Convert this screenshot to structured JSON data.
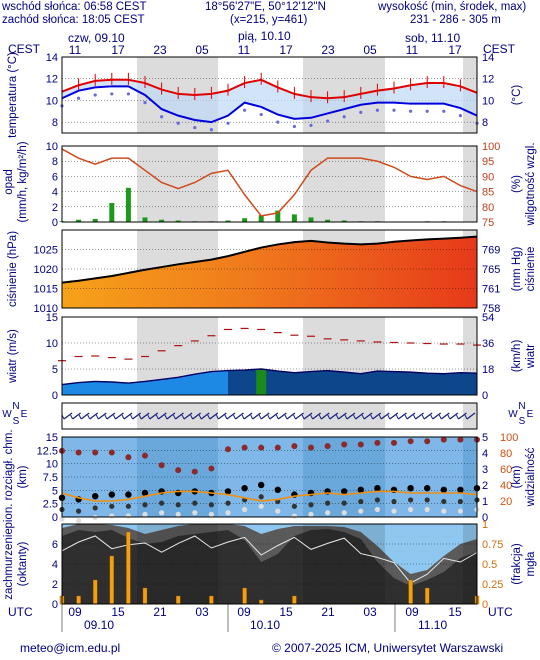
{
  "header": {
    "sunrise": "wschód słońca: 06:58 CEST",
    "sunset": "zachód słońca: 18:05 CEST",
    "coords": "18°56'27\"E, 50°12'12\"N",
    "grid": "(x=215, y=461)",
    "altitude_label": "wysokość (min, środek, max)",
    "altitude_value": "231 - 286 - 305 m"
  },
  "timezone_top": "CEST",
  "timezone_bottom": "UTC",
  "days_top": [
    "czw, 09.10",
    "pią, 10.10",
    "sob, 11.10"
  ],
  "hours_top": [
    "11",
    "17",
    "23",
    "05",
    "11",
    "17",
    "23",
    "05",
    "11",
    "17"
  ],
  "hours_bottom": [
    "09",
    "15",
    "21",
    "03",
    "09",
    "15",
    "21",
    "03",
    "09",
    "15"
  ],
  "days_bottom": [
    "09.10",
    "10.10",
    "11.10"
  ],
  "footer": {
    "email": "meteo@icm.edu.pl",
    "copyright": "© 2007-2025 ICM, Uniwersytet Warszawski"
  },
  "chart_data": [
    {
      "type": "line",
      "panel": "temperature",
      "ylabel": "temperatura (°C)",
      "ylabel_right": "(°C)",
      "ylim": [
        7,
        14
      ],
      "yticks": [
        8,
        10,
        12,
        14
      ],
      "series": [
        {
          "color": "#e00000",
          "values": [
            10.8,
            11.4,
            11.8,
            11.9,
            11.9,
            11.6,
            11.0,
            10.6,
            10.5,
            10.6,
            10.9,
            11.6,
            11.9,
            11.2,
            10.6,
            10.3,
            10.2,
            10.3,
            10.6,
            10.9,
            11.1,
            11.4,
            11.6,
            11.6,
            11.3,
            10.7
          ]
        },
        {
          "color": "#0000dd",
          "values": [
            10.2,
            10.9,
            11.2,
            11.3,
            11.3,
            10.5,
            9.2,
            8.6,
            8.2,
            8.0,
            8.6,
            9.8,
            9.4,
            8.7,
            8.3,
            8.4,
            8.8,
            9.2,
            9.6,
            9.8,
            9.8,
            9.7,
            9.7,
            9.7,
            9.3,
            8.6
          ]
        }
      ]
    },
    {
      "type": "line",
      "panel": "precipitation",
      "ylabel": "opad (mm/h, kg/m²/h)",
      "ylabel_right": "wilgotność wzgl. (%)",
      "ylim": [
        0,
        10
      ],
      "yticks": [
        0,
        2,
        4,
        6,
        8,
        10
      ],
      "ylim_right": [
        75,
        100
      ],
      "yticks_right": [
        75,
        80,
        85,
        90,
        95,
        100
      ],
      "humidity": [
        99,
        96,
        94,
        96,
        96,
        92,
        88,
        86,
        88,
        91,
        92,
        84,
        77,
        78,
        84,
        92,
        96,
        96,
        96,
        95,
        93,
        90,
        89,
        90,
        87,
        85
      ],
      "precip": [
        0.1,
        0.3,
        0.4,
        2.5,
        4.5,
        0.6,
        0.3,
        0.2,
        0.1,
        0.1,
        0.2,
        0.5,
        0.9,
        1.5,
        1.0,
        0.6,
        0.3,
        0.2,
        0.1,
        0.1,
        0.0,
        0.0,
        0.1,
        0.1,
        0.0,
        0.0
      ]
    },
    {
      "type": "area",
      "panel": "pressure",
      "ylabel": "ciśnienie (hPa)",
      "ylabel_right": "ciśnienie (mm Hg)",
      "ylim": [
        1010,
        1030
      ],
      "yticks": [
        1010,
        1015,
        1020,
        1025
      ],
      "yticks_right": [
        758,
        761,
        765,
        769
      ],
      "values": [
        1016.5,
        1017.0,
        1017.6,
        1018.2,
        1019.0,
        1019.8,
        1020.5,
        1021.2,
        1021.8,
        1022.4,
        1023.3,
        1024.4,
        1025.5,
        1026.3,
        1026.9,
        1027.2,
        1026.8,
        1026.5,
        1026.3,
        1026.5,
        1027.0,
        1027.3,
        1027.6,
        1027.8,
        1028.0,
        1028.3
      ]
    },
    {
      "type": "area",
      "panel": "wind",
      "ylabel": "wiatr (m/s)",
      "ylabel_right": "(km/h) wiatr",
      "ylim": [
        0,
        15
      ],
      "yticks": [
        0,
        5,
        10,
        15
      ],
      "yticks_right": [
        0,
        18,
        36,
        54
      ],
      "speed": [
        2.0,
        2.4,
        2.6,
        2.5,
        2.3,
        2.6,
        3.0,
        3.4,
        4.0,
        4.5,
        4.7,
        4.8,
        5.0,
        4.6,
        4.3,
        4.5,
        4.7,
        4.4,
        4.1,
        4.6,
        4.5,
        4.4,
        4.2,
        4.1,
        4.3,
        4.2
      ],
      "gusts": [
        6.6,
        7.4,
        7.5,
        7.2,
        6.9,
        7.4,
        8.5,
        9.5,
        10.4,
        11.4,
        12.6,
        12.8,
        12.6,
        12.0,
        11.5,
        11.3,
        10.8,
        10.6,
        10.4,
        10.2,
        10.1,
        10.0,
        9.9,
        9.8,
        9.8,
        9.6
      ]
    },
    {
      "type": "line",
      "panel": "visibility",
      "ylabel": "pion. rozciągł. chm. (km)",
      "ylabel_right": "widzialność (km)",
      "ylim": [
        0,
        15
      ],
      "yticks": [
        0,
        2.5,
        5,
        7.5,
        10,
        12.5,
        15
      ],
      "yticks_right": [
        0,
        1,
        2,
        3,
        4,
        5
      ],
      "ylim_right": [
        0,
        100
      ],
      "yticks_right2": [
        20,
        40,
        60,
        80,
        100
      ],
      "visibility": [
        4.5,
        3.6,
        3.0,
        3.0,
        3.3,
        3.9,
        4.5,
        4.8,
        4.8,
        4.5,
        4.2,
        3.6,
        3.0,
        3.3,
        3.9,
        4.2,
        4.5,
        4.2,
        4.5,
        4.8,
        4.8,
        4.5,
        4.5,
        4.5,
        4.5,
        4.2
      ],
      "cloud_top": [
        12.4,
        12.1,
        12.1,
        12.1,
        11.2,
        11.5,
        9.7,
        8.8,
        8.5,
        9.1,
        12.7,
        13.0,
        13.0,
        13.0,
        13.3,
        13.0,
        13.3,
        13.6,
        13.6,
        13.9,
        13.9,
        14.2,
        14.2,
        14.5,
        14.5,
        14.5
      ],
      "cloud_base": [
        3.6,
        3.3,
        3.9,
        4.2,
        4.2,
        4.5,
        4.8,
        4.5,
        4.8,
        4.5,
        4.8,
        5.4,
        6.0,
        5.1,
        4.2,
        4.5,
        4.8,
        4.8,
        5.1,
        5.4,
        5.1,
        5.4,
        5.4,
        5.1,
        5.1,
        5.4
      ]
    },
    {
      "type": "area",
      "panel": "cloudiness",
      "ylabel": "zachmurzenie (oktanty)",
      "ylabel_right": "(frakcja) mgła",
      "ylim": [
        0,
        8
      ],
      "yticks": [
        0,
        2,
        4,
        6
      ],
      "yticks_right": [
        0,
        0.25,
        0.5,
        0.75,
        1
      ],
      "total_cloud": [
        7.6,
        8.0,
        8.0,
        7.9,
        7.6,
        7.0,
        7.4,
        7.8,
        8.0,
        8.0,
        8.0,
        7.8,
        7.0,
        7.5,
        7.8,
        7.8,
        7.8,
        7.7,
        7.2,
        5.8,
        4.2,
        3.0,
        3.4,
        4.8,
        6.0,
        6.5
      ],
      "mid_cloud": [
        6.8,
        7.4,
        7.2,
        7.4,
        6.6,
        6.0,
        6.2,
        6.8,
        7.0,
        7.2,
        7.4,
        6.4,
        4.2,
        5.0,
        6.8,
        7.4,
        7.5,
        7.2,
        6.5,
        4.2,
        2.6,
        1.8,
        2.4,
        3.2,
        4.6,
        5.2
      ],
      "fog": [
        0.1,
        0.1,
        0.3,
        0.6,
        0.9,
        0.2,
        0.0,
        0.1,
        0.0,
        0.1,
        0.0,
        0.2,
        0.05,
        0.0,
        0.1,
        0.0,
        0.0,
        0.0,
        0.0,
        0.0,
        0.0,
        0.3,
        0.2,
        0.0,
        0.0,
        0.1
      ]
    }
  ]
}
